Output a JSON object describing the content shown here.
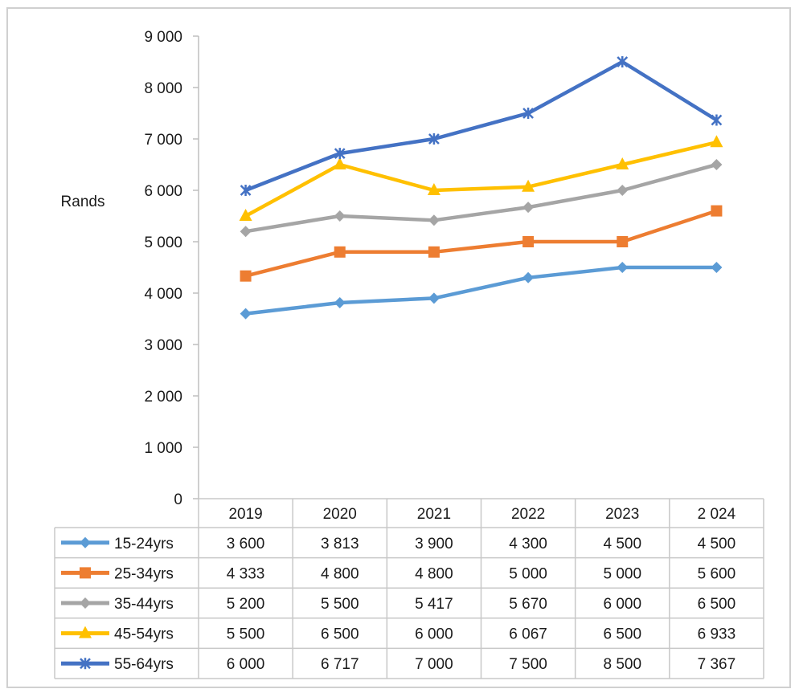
{
  "chart_data": {
    "type": "line",
    "title": "",
    "xlabel": "",
    "ylabel": "Rands",
    "ylim": [
      0,
      9000
    ],
    "yticks": [
      0,
      1000,
      2000,
      3000,
      4000,
      5000,
      6000,
      7000,
      8000,
      9000
    ],
    "ytick_labels": [
      "0",
      "1 000",
      "2 000",
      "3 000",
      "4 000",
      "5 000",
      "6 000",
      "7 000",
      "8 000",
      "9 000"
    ],
    "categories": [
      "2019",
      "2020",
      "2021",
      "2022",
      "2023",
      "2 024"
    ],
    "legend": "data-table-left",
    "grid": false,
    "series": [
      {
        "name": "15-24yrs",
        "color": "#5b9bd5",
        "marker": "diamond",
        "values": [
          3600,
          3813,
          3900,
          4300,
          4500,
          4500
        ],
        "labels": [
          "3 600",
          "3 813",
          "3 900",
          "4 300",
          "4 500",
          "4 500"
        ]
      },
      {
        "name": "25-34yrs",
        "color": "#ed7d31",
        "marker": "square",
        "values": [
          4333,
          4800,
          4800,
          5000,
          5000,
          5600
        ],
        "labels": [
          "4 333",
          "4 800",
          "4 800",
          "5 000",
          "5 000",
          "5 600"
        ]
      },
      {
        "name": "35-44yrs",
        "color": "#a5a5a5",
        "marker": "diamond",
        "values": [
          5200,
          5500,
          5417,
          5670,
          6000,
          6500
        ],
        "labels": [
          "5 200",
          "5 500",
          "5 417",
          "5 670",
          "6 000",
          "6 500"
        ]
      },
      {
        "name": "45-54yrs",
        "color": "#ffc000",
        "marker": "triangle",
        "values": [
          5500,
          6500,
          6000,
          6067,
          6500,
          6933
        ],
        "labels": [
          "5 500",
          "6 500",
          "6 000",
          "6 067",
          "6 500",
          "6 933"
        ]
      },
      {
        "name": "55-64yrs",
        "color": "#4472c4",
        "marker": "star",
        "values": [
          6000,
          6717,
          7000,
          7500,
          8500,
          7367
        ],
        "labels": [
          "6 000",
          "6 717",
          "7 000",
          "7 500",
          "8 500",
          "7 367"
        ]
      }
    ]
  }
}
